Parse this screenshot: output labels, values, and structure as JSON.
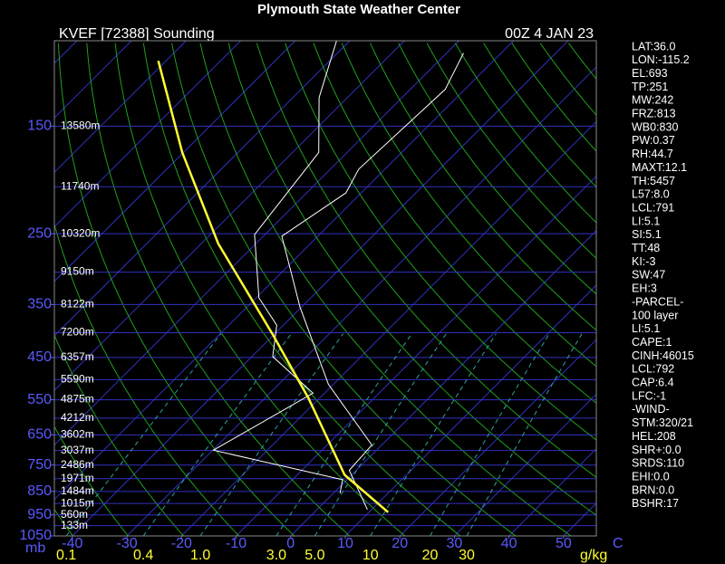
{
  "chart_data": {
    "type": "skewt",
    "title": "Plymouth State Weather Center",
    "station": "KVEF [72388] Sounding",
    "time": "00Z  4 JAN 23",
    "pressure_unit": "mb",
    "temperature_unit": "C",
    "mixing_ratio_unit": "g/kg",
    "ylim": [
      1050,
      100
    ],
    "log_y": true,
    "yticks": [
      150,
      250,
      350,
      450,
      550,
      650,
      750,
      850,
      950,
      1050
    ],
    "xlim": [
      -43.3,
      56
    ],
    "xticks": [
      -40,
      -30,
      -20,
      -10,
      0,
      10,
      20,
      30,
      40,
      50
    ],
    "height_levels": [
      150,
      200,
      250,
      300,
      350,
      400,
      450,
      500,
      550,
      600,
      650,
      700,
      750,
      800,
      850,
      900,
      950,
      1000
    ],
    "height_labels": [
      "13580m",
      "11740m",
      "10320m",
      "9150m",
      "8122m",
      "7200m",
      "6357m",
      "5590m",
      "4875m",
      "4212m",
      "3602m",
      "3037m",
      "2486m",
      "1971m",
      "1484m",
      "1015m",
      "560m",
      "133m"
    ],
    "mixing_ratios": [
      0.1,
      0.4,
      {
        "value": 1,
        "label": "1.0"
      },
      {
        "value": 3,
        "label": "3.0"
      },
      {
        "value": 5,
        "label": "5.0"
      },
      10,
      20,
      30
    ],
    "series": [
      {
        "color": "#ffffff",
        "pressure": [
          926,
          769,
          682,
          511,
          354,
          253,
          206,
          184,
          126,
          106
        ],
        "values": [
          9.2,
          -1.3,
          -1.8,
          -20.9,
          -40.3,
          -56.6,
          -52.8,
          -54.8,
          -53.6,
          -56.9
        ]
      },
      {
        "color": "#ffffff",
        "pressure": [
          857,
          804,
          699,
          533,
          448,
          386,
          339,
          251,
          170,
          131,
          99
        ],
        "values": [
          1.2,
          -0.8,
          -29.9,
          -22.1,
          -36.2,
          -41.2,
          -49.5,
          -61.9,
          -65.2,
          -75.2,
          -82.7
        ]
      },
      {
        "color": "#ffff33",
        "pressure": [
          938,
          786,
          545,
          403,
          262,
          170,
          110
        ],
        "values": [
          13.5,
          -1.3,
          -22.1,
          -40.3,
          -66.9,
          -90.2,
          -111.4
        ]
      }
    ],
    "stats": [
      "LAT:36.0",
      "LON:-115.2",
      "EL:693",
      "TP:251",
      "MW:242",
      "FRZ:813",
      "WB0:830",
      "PW:0.37",
      "RH:44.7",
      "MAXT:12.1",
      "TH:5457",
      "L57:8.0",
      "LCL:791",
      "LI:5.1",
      "SI:5.1",
      "TT:48",
      "KI:-3",
      "SW:47",
      "EH:3",
      "-PARCEL-",
      "100 layer",
      "LI:5.1",
      "CAPE:1",
      "CINH:46015",
      "LCL:792",
      "CAP:6.4",
      "LFC:-1",
      "-WIND-",
      "STM:320/21",
      "HEL:208",
      "SHR+:0.0",
      "SRDS:110",
      "EHI:0.0",
      "BRN:0.0",
      "BSHR:17"
    ]
  }
}
